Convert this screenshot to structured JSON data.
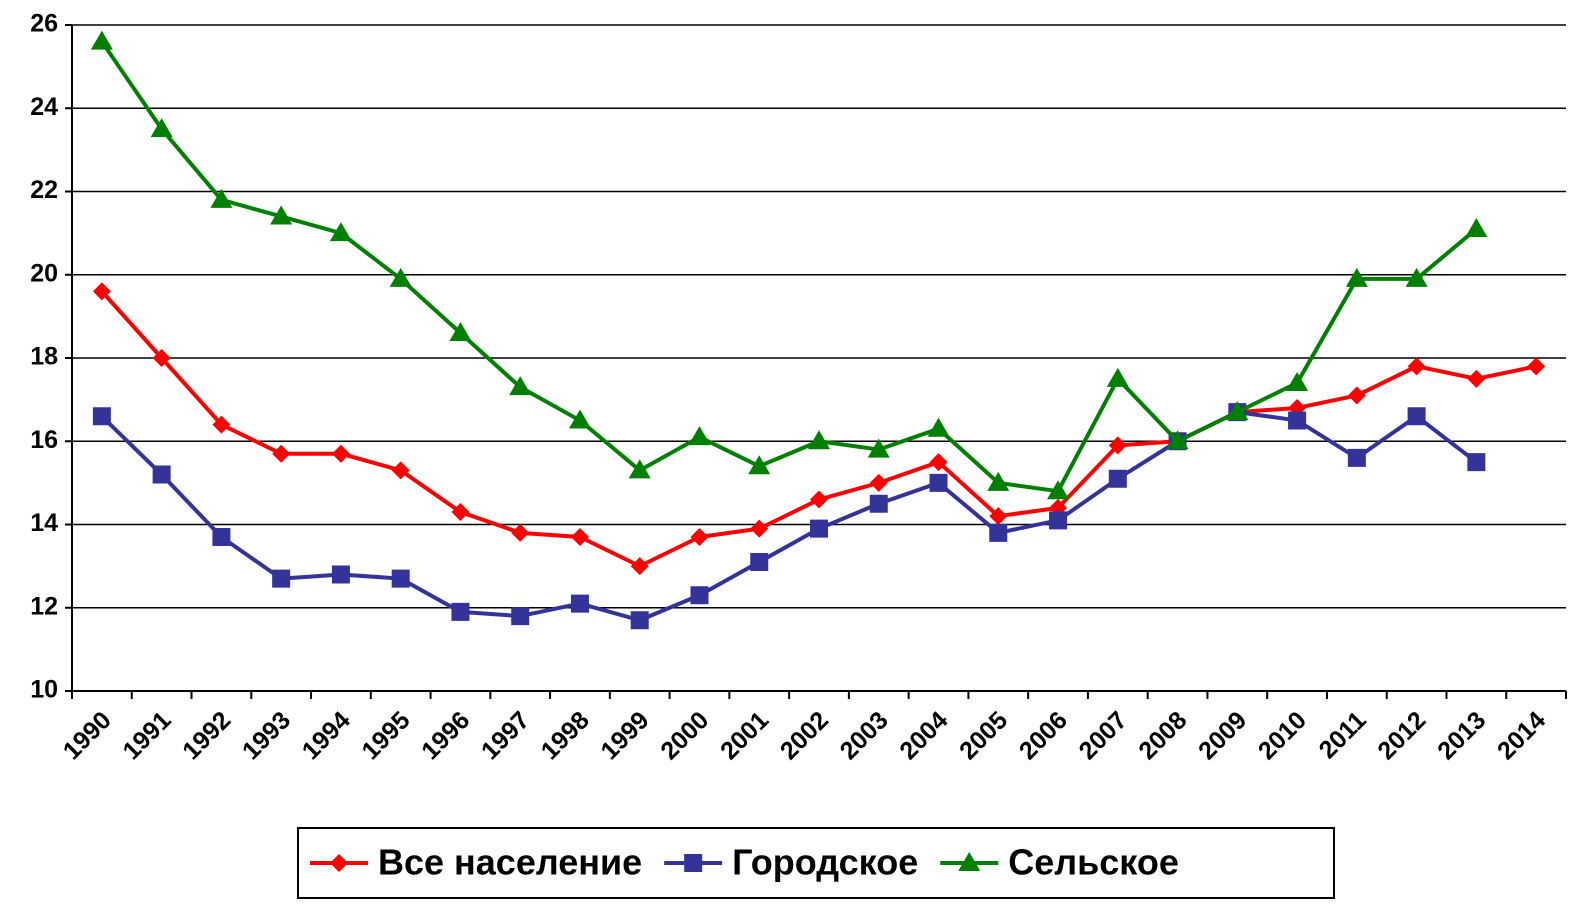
{
  "chart_data": {
    "type": "line",
    "categories": [
      "1990",
      "1991",
      "1992",
      "1993",
      "1994",
      "1995",
      "1996",
      "1997",
      "1998",
      "1999",
      "2000",
      "2001",
      "2002",
      "2003",
      "2004",
      "2005",
      "2006",
      "2007",
      "2008",
      "2009",
      "2010",
      "2011",
      "2012",
      "2013",
      "2014"
    ],
    "series": [
      {
        "name": "Все население",
        "color": "#ff0000",
        "marker": "diamond",
        "values": [
          19.6,
          18.0,
          16.4,
          15.7,
          15.7,
          15.3,
          14.3,
          13.8,
          13.7,
          13.0,
          13.7,
          13.9,
          14.6,
          15.0,
          15.5,
          14.2,
          14.4,
          15.9,
          16.0,
          16.7,
          16.8,
          17.1,
          17.8,
          17.5,
          17.8
        ]
      },
      {
        "name": "Городское",
        "color": "#333399",
        "marker": "square",
        "values": [
          16.6,
          15.2,
          13.7,
          12.7,
          12.8,
          12.7,
          11.9,
          11.8,
          12.1,
          11.7,
          12.3,
          13.1,
          13.9,
          14.5,
          15.0,
          13.8,
          14.1,
          15.1,
          16.0,
          16.7,
          16.5,
          15.6,
          16.6,
          15.5,
          null
        ]
      },
      {
        "name": "Сельское",
        "color": "#008000",
        "marker": "triangle",
        "values": [
          25.6,
          23.5,
          21.8,
          21.4,
          21.0,
          19.9,
          18.6,
          17.3,
          16.5,
          15.3,
          16.1,
          15.4,
          16.0,
          15.8,
          16.3,
          15.0,
          14.8,
          17.5,
          16.0,
          16.7,
          17.4,
          19.9,
          19.9,
          21.1,
          null
        ]
      }
    ],
    "ylim": [
      10,
      26
    ],
    "yticks": [
      10,
      12,
      14,
      16,
      18,
      20,
      22,
      24,
      26
    ],
    "grid": true,
    "legend": "bottom"
  }
}
